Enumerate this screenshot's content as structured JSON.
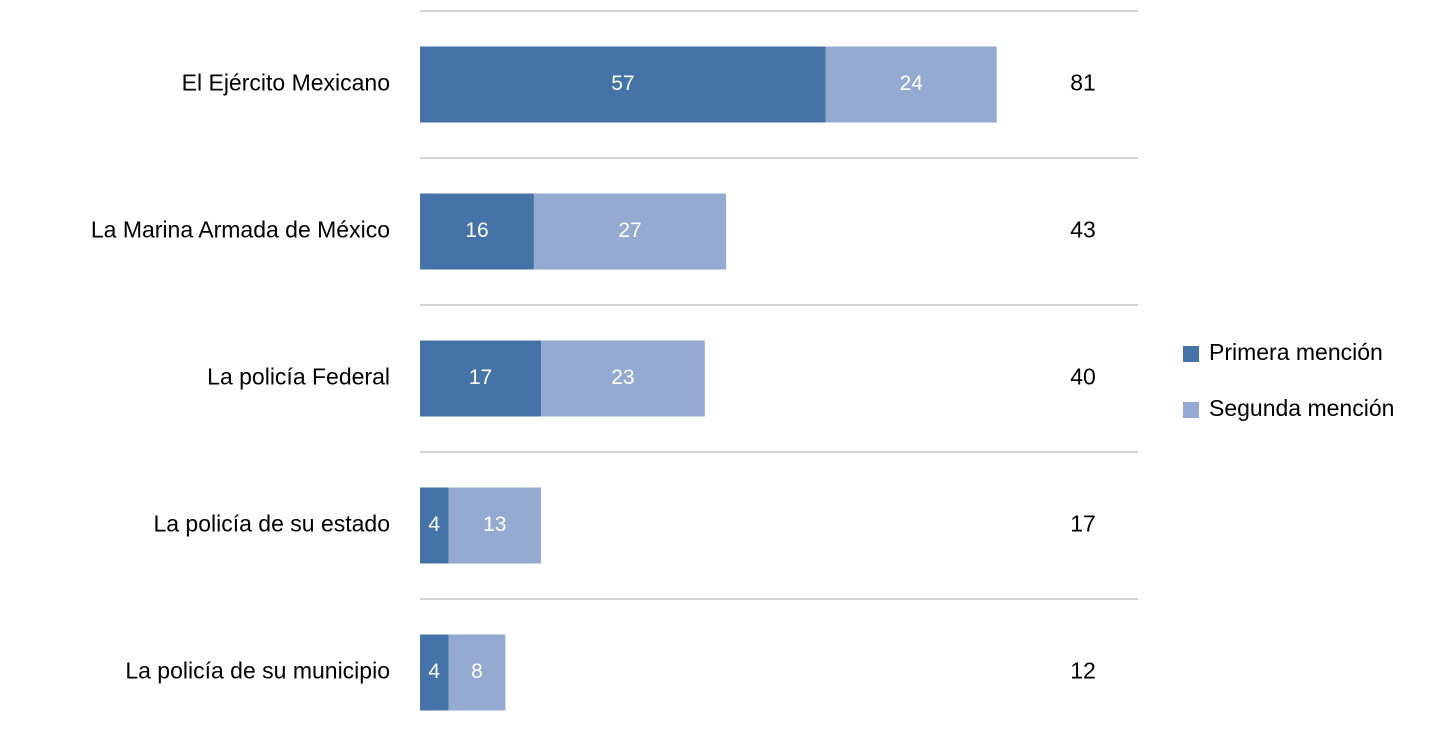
{
  "chart_data": {
    "type": "stacked_barh",
    "categories": [
      "El Ejército Mexicano",
      "La Marina Armada de México",
      "La policía Federal",
      "La policía de su estado",
      "La policía de su municipio"
    ],
    "series": [
      {
        "name": "Primera mención",
        "color": "#4572a7",
        "values": [
          57,
          16,
          17,
          4,
          4
        ]
      },
      {
        "name": "Segunda mención",
        "color": "#95aad1",
        "values": [
          24,
          27,
          23,
          13,
          8
        ]
      }
    ],
    "totals": [
      81,
      43,
      40,
      17,
      12
    ],
    "xlim": [
      0,
      100
    ],
    "legend": "right"
  }
}
